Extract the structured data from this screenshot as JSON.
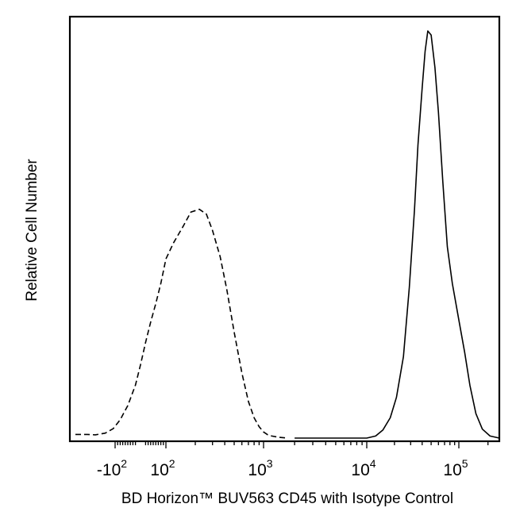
{
  "chart_data": {
    "type": "line",
    "title": "",
    "xlabel": "BD Horizon™ BUV563  CD45 with Isotype Control",
    "ylabel": "Relative Cell Number",
    "x_scale": "biexponential",
    "xlim": [
      -300,
      262000
    ],
    "ylim": [
      0,
      100
    ],
    "grid": false,
    "legend": "none",
    "x_ticks": [
      {
        "value": -100,
        "base": "-10",
        "exp": "2"
      },
      {
        "value": 100,
        "base": "10",
        "exp": "2"
      },
      {
        "value": 1000,
        "base": "10",
        "exp": "3"
      },
      {
        "value": 10000,
        "base": "10",
        "exp": "4"
      },
      {
        "value": 100000,
        "base": "10",
        "exp": "5"
      }
    ],
    "series": [
      {
        "style": "dashed",
        "color": "#000000",
        "x": [
          -300,
          -240,
          -200,
          -150,
          -110,
          -80,
          -50,
          -20,
          0,
          20,
          40,
          60,
          80,
          100,
          120,
          150,
          180,
          220,
          260,
          300,
          360,
          420,
          500,
          600,
          700,
          800,
          900,
          1000,
          1100,
          1200,
          1400,
          1700
        ],
        "y": [
          0.9,
          0.9,
          0.8,
          1.2,
          2.3,
          4.5,
          8.0,
          13.0,
          18.0,
          23.5,
          28.5,
          33.0,
          38.0,
          44.0,
          48.0,
          52.0,
          55.5,
          56.2,
          55.0,
          51.0,
          44.5,
          36.5,
          26.0,
          16.0,
          9.0,
          5.0,
          2.8,
          1.5,
          0.8,
          0.5,
          0.2,
          0.0
        ]
      },
      {
        "style": "solid",
        "color": "#000000",
        "x": [
          2000,
          10000,
          12500,
          15000,
          18000,
          21000,
          25000,
          29000,
          33000,
          36000,
          40000,
          43000,
          46000,
          50000,
          55000,
          60000,
          67000,
          75000,
          85000,
          100000,
          115000,
          130000,
          150000,
          175000,
          210000,
          262000
        ],
        "y": [
          0.0,
          0.0,
          0.5,
          2.0,
          5.0,
          10.0,
          20.0,
          37.0,
          56.0,
          72.0,
          86.0,
          95.0,
          100.0,
          99.0,
          91.0,
          80.0,
          63.0,
          47.0,
          38.0,
          29.0,
          21.0,
          13.0,
          6.0,
          2.2,
          0.5,
          0.0
        ]
      }
    ]
  }
}
